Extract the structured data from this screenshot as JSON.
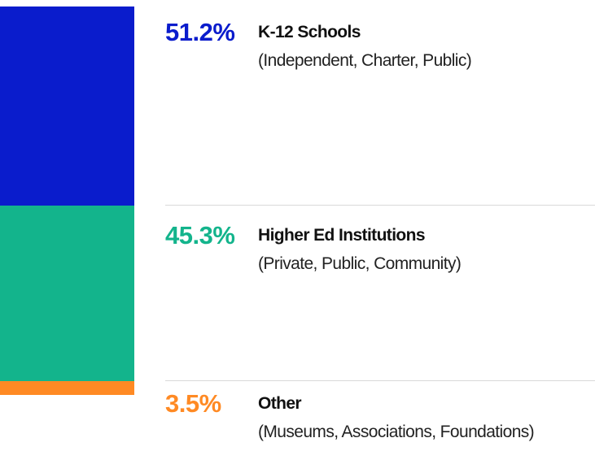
{
  "chart_data": {
    "type": "bar",
    "stacked": true,
    "orientation": "vertical",
    "categories": [
      "K-12 Schools",
      "Higher Ed Institutions",
      "Other"
    ],
    "values": [
      51.2,
      45.3,
      3.5
    ],
    "value_labels": [
      "51.2%",
      "45.3%",
      "3.5%"
    ],
    "descriptions": [
      "(Independent, Charter, Public)",
      "(Private, Public, Community)",
      "(Museums, Associations, Foundations)"
    ],
    "colors": [
      "#0a1ccc",
      "#13b48c",
      "#ff8a24"
    ],
    "unit": "%"
  }
}
